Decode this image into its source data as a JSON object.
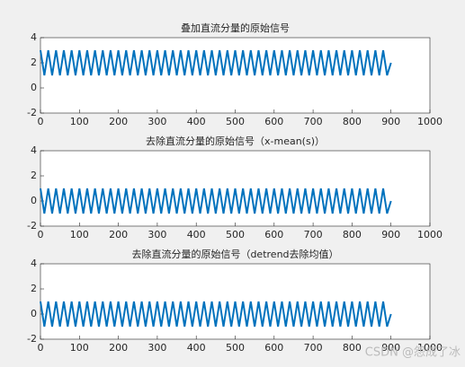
{
  "chart_data": [
    {
      "type": "line",
      "title": "叠加直流分量的原始信号",
      "x": [
        0,
        10,
        20,
        30,
        40,
        50,
        60,
        70,
        80,
        90,
        100,
        110,
        120,
        130,
        140,
        150,
        160,
        170,
        180,
        190,
        200,
        210,
        220,
        230,
        240,
        250,
        260,
        270,
        280,
        290,
        300,
        310,
        320,
        330,
        340,
        350,
        360,
        370,
        380,
        390,
        400,
        410,
        420,
        430,
        440,
        450,
        460,
        470,
        480,
        490,
        500,
        510,
        520,
        530,
        540,
        550,
        560,
        570,
        580,
        590,
        600,
        610,
        620,
        630,
        640,
        650,
        660,
        670,
        680,
        690,
        700,
        710,
        720,
        730,
        740,
        750,
        760,
        770,
        780,
        790,
        800,
        810,
        820,
        830,
        840,
        850,
        860,
        870,
        880,
        890,
        900
      ],
      "series": [
        {
          "color": "#0072bd",
          "values": [
            3,
            1,
            3,
            1,
            3,
            1,
            3,
            1,
            3,
            1,
            3,
            1,
            3,
            1,
            3,
            1,
            3,
            1,
            3,
            1,
            3,
            1,
            3,
            1,
            3,
            1,
            3,
            1,
            3,
            1,
            3,
            1,
            3,
            1,
            3,
            1,
            3,
            1,
            3,
            1,
            3,
            1,
            3,
            1,
            3,
            1,
            3,
            1,
            3,
            1,
            3,
            1,
            3,
            1,
            3,
            1,
            3,
            1,
            3,
            1,
            3,
            1,
            3,
            1,
            3,
            1,
            3,
            1,
            3,
            1,
            3,
            1,
            3,
            1,
            3,
            1,
            3,
            1,
            3,
            1,
            3,
            1,
            3,
            1,
            3,
            1,
            3,
            1,
            3,
            1,
            2
          ]
        }
      ],
      "xlim": [
        0,
        1000
      ],
      "xticks": [
        0,
        100,
        200,
        300,
        400,
        500,
        600,
        700,
        800,
        900,
        1000
      ],
      "ylim": [
        -2,
        4
      ],
      "yticks": [
        -2,
        0,
        2,
        4
      ]
    },
    {
      "type": "line",
      "title": "去除直流分量的原始信号（x-mean(s)）",
      "x": [
        0,
        10,
        20,
        30,
        40,
        50,
        60,
        70,
        80,
        90,
        100,
        110,
        120,
        130,
        140,
        150,
        160,
        170,
        180,
        190,
        200,
        210,
        220,
        230,
        240,
        250,
        260,
        270,
        280,
        290,
        300,
        310,
        320,
        330,
        340,
        350,
        360,
        370,
        380,
        390,
        400,
        410,
        420,
        430,
        440,
        450,
        460,
        470,
        480,
        490,
        500,
        510,
        520,
        530,
        540,
        550,
        560,
        570,
        580,
        590,
        600,
        610,
        620,
        630,
        640,
        650,
        660,
        670,
        680,
        690,
        700,
        710,
        720,
        730,
        740,
        750,
        760,
        770,
        780,
        790,
        800,
        810,
        820,
        830,
        840,
        850,
        860,
        870,
        880,
        890,
        900
      ],
      "series": [
        {
          "color": "#0072bd",
          "values": [
            1,
            -1,
            1,
            -1,
            1,
            -1,
            1,
            -1,
            1,
            -1,
            1,
            -1,
            1,
            -1,
            1,
            -1,
            1,
            -1,
            1,
            -1,
            1,
            -1,
            1,
            -1,
            1,
            -1,
            1,
            -1,
            1,
            -1,
            1,
            -1,
            1,
            -1,
            1,
            -1,
            1,
            -1,
            1,
            -1,
            1,
            -1,
            1,
            -1,
            1,
            -1,
            1,
            -1,
            1,
            -1,
            1,
            -1,
            1,
            -1,
            1,
            -1,
            1,
            -1,
            1,
            -1,
            1,
            -1,
            1,
            -1,
            1,
            -1,
            1,
            -1,
            1,
            -1,
            1,
            -1,
            1,
            -1,
            1,
            -1,
            1,
            -1,
            1,
            -1,
            1,
            -1,
            1,
            -1,
            1,
            -1,
            1,
            -1,
            1,
            -1,
            0
          ]
        }
      ],
      "xlim": [
        0,
        1000
      ],
      "xticks": [
        0,
        100,
        200,
        300,
        400,
        500,
        600,
        700,
        800,
        900,
        1000
      ],
      "ylim": [
        -2,
        4
      ],
      "yticks": [
        -2,
        0,
        2,
        4
      ]
    },
    {
      "type": "line",
      "title": "去除直流分量的原始信号（detrend去除均值）",
      "x": [
        0,
        10,
        20,
        30,
        40,
        50,
        60,
        70,
        80,
        90,
        100,
        110,
        120,
        130,
        140,
        150,
        160,
        170,
        180,
        190,
        200,
        210,
        220,
        230,
        240,
        250,
        260,
        270,
        280,
        290,
        300,
        310,
        320,
        330,
        340,
        350,
        360,
        370,
        380,
        390,
        400,
        410,
        420,
        430,
        440,
        450,
        460,
        470,
        480,
        490,
        500,
        510,
        520,
        530,
        540,
        550,
        560,
        570,
        580,
        590,
        600,
        610,
        620,
        630,
        640,
        650,
        660,
        670,
        680,
        690,
        700,
        710,
        720,
        730,
        740,
        750,
        760,
        770,
        780,
        790,
        800,
        810,
        820,
        830,
        840,
        850,
        860,
        870,
        880,
        890,
        900
      ],
      "series": [
        {
          "color": "#0072bd",
          "values": [
            1,
            -1,
            1,
            -1,
            1,
            -1,
            1,
            -1,
            1,
            -1,
            1,
            -1,
            1,
            -1,
            1,
            -1,
            1,
            -1,
            1,
            -1,
            1,
            -1,
            1,
            -1,
            1,
            -1,
            1,
            -1,
            1,
            -1,
            1,
            -1,
            1,
            -1,
            1,
            -1,
            1,
            -1,
            1,
            -1,
            1,
            -1,
            1,
            -1,
            1,
            -1,
            1,
            -1,
            1,
            -1,
            1,
            -1,
            1,
            -1,
            1,
            -1,
            1,
            -1,
            1,
            -1,
            1,
            -1,
            1,
            -1,
            1,
            -1,
            1,
            -1,
            1,
            -1,
            1,
            -1,
            1,
            -1,
            1,
            -1,
            1,
            -1,
            1,
            -1,
            1,
            -1,
            1,
            -1,
            1,
            -1,
            1,
            -1,
            1,
            -1,
            0
          ]
        }
      ],
      "xlim": [
        0,
        1000
      ],
      "xticks": [
        0,
        100,
        200,
        300,
        400,
        500,
        600,
        700,
        800,
        900,
        1000
      ],
      "ylim": [
        -2,
        4
      ],
      "yticks": [
        -2,
        0,
        2,
        4
      ]
    }
  ],
  "watermark": "CSDN @怨成了冰"
}
